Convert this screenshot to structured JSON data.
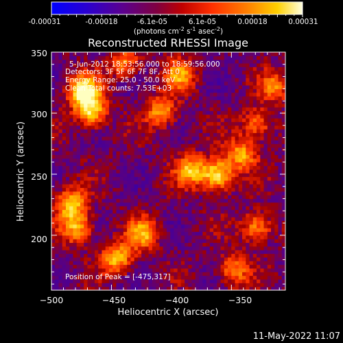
{
  "colorbar": {
    "tick_labels": [
      "-0.00031",
      "-0.00018",
      "-6.1e-05",
      "6.1e-05",
      "0.00018",
      "0.00031"
    ],
    "unit_prefix": "(photons cm",
    "unit_exp1": "-2",
    "unit_mid": " s",
    "unit_exp2": "-1",
    "unit_mid2": " asec",
    "unit_exp3": "-2",
    "unit_suffix": ")"
  },
  "annotations": {
    "time_range": "5-Jun-2012 18:53:56.000 to 18:59:56.000",
    "detectors": "Detectors: 3F 5F 6F 7F 8F, Att 0",
    "energy_range": "Energy Range: 25.0 - 50.0 keV",
    "clean": "Clean  Total counts: 7.53E+03",
    "peak": "Position of Peak = [-475,317]"
  },
  "footer": {
    "timestamp": "11-May-2022 11:07"
  },
  "chart_data": {
    "type": "heatmap",
    "title": "Reconstructed RHESSI Image",
    "xlabel": "Heliocentric X (arcsec)",
    "ylabel": "Heliocentric Y (arcsec)",
    "xlim": [
      -500,
      -305
    ],
    "ylim": [
      155,
      350
    ],
    "x_ticks": [
      -500,
      -450,
      -400,
      -350
    ],
    "x_tick_labels": [
      "−500",
      "−450",
      "−400",
      "−350"
    ],
    "y_ticks": [
      200,
      250,
      300,
      350
    ],
    "y_tick_labels": [
      "200",
      "250",
      "300",
      "350"
    ],
    "colorbar_range": [
      -0.00031,
      0.00031
    ],
    "peak_position": [
      -475,
      317
    ],
    "colormap": [
      "#0000ff",
      "#4000a0",
      "#5a0080",
      "#a00000",
      "#ff3000",
      "#ff8000",
      "#ffd000",
      "#ffffc0"
    ],
    "bright_sources": [
      {
        "x": -475,
        "y": 317,
        "value": 0.00031
      },
      {
        "x": -468,
        "y": 300,
        "value": 0.00024
      },
      {
        "x": -363,
        "y": 248,
        "value": 0.00028
      },
      {
        "x": -385,
        "y": 252,
        "value": 0.00018
      },
      {
        "x": -343,
        "y": 265,
        "value": 0.00016
      },
      {
        "x": -485,
        "y": 225,
        "value": 0.0002
      },
      {
        "x": -480,
        "y": 205,
        "value": 0.00018
      },
      {
        "x": -447,
        "y": 180,
        "value": 0.0002
      },
      {
        "x": -425,
        "y": 200,
        "value": 0.00017
      },
      {
        "x": -410,
        "y": 300,
        "value": 0.00016
      },
      {
        "x": -395,
        "y": 330,
        "value": 0.00014
      },
      {
        "x": -330,
        "y": 205,
        "value": 0.00015
      },
      {
        "x": -350,
        "y": 170,
        "value": 0.00013
      },
      {
        "x": -440,
        "y": 340,
        "value": 0.00012
      },
      {
        "x": -315,
        "y": 320,
        "value": 0.0001
      },
      {
        "x": -330,
        "y": 290,
        "value": 0.00012
      }
    ]
  }
}
